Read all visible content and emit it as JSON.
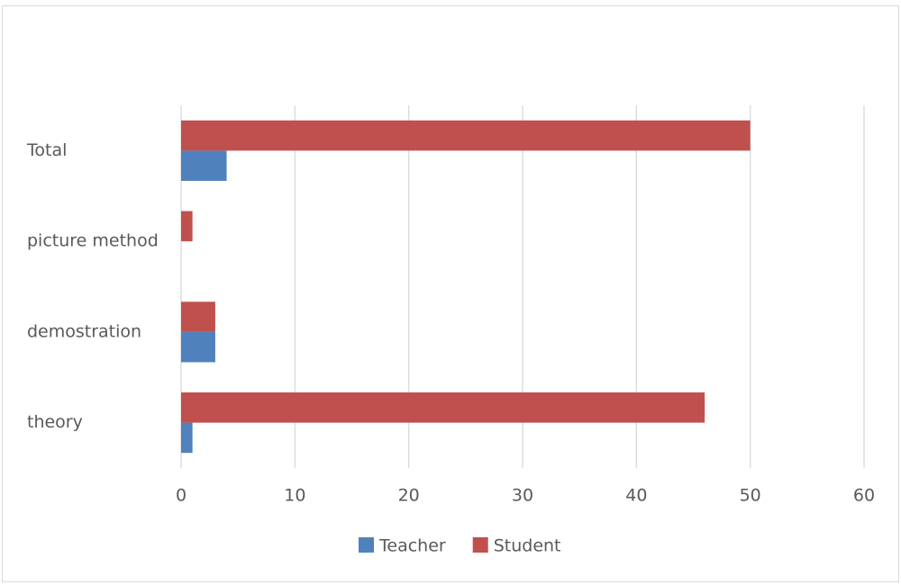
{
  "chart_data": {
    "type": "barh",
    "categories": [
      "theory",
      "demostration",
      "picture method",
      "Total"
    ],
    "series": [
      {
        "name": "Teacher",
        "color": "#4f81bd",
        "values": [
          1,
          3,
          0,
          4
        ]
      },
      {
        "name": "Student",
        "color": "#c0504d",
        "values": [
          46,
          3,
          1,
          50
        ]
      }
    ],
    "xlim": [
      0,
      60
    ],
    "xticks": [
      0,
      10,
      20,
      30,
      40,
      50,
      60
    ],
    "grid": true,
    "legend": "bottom"
  }
}
